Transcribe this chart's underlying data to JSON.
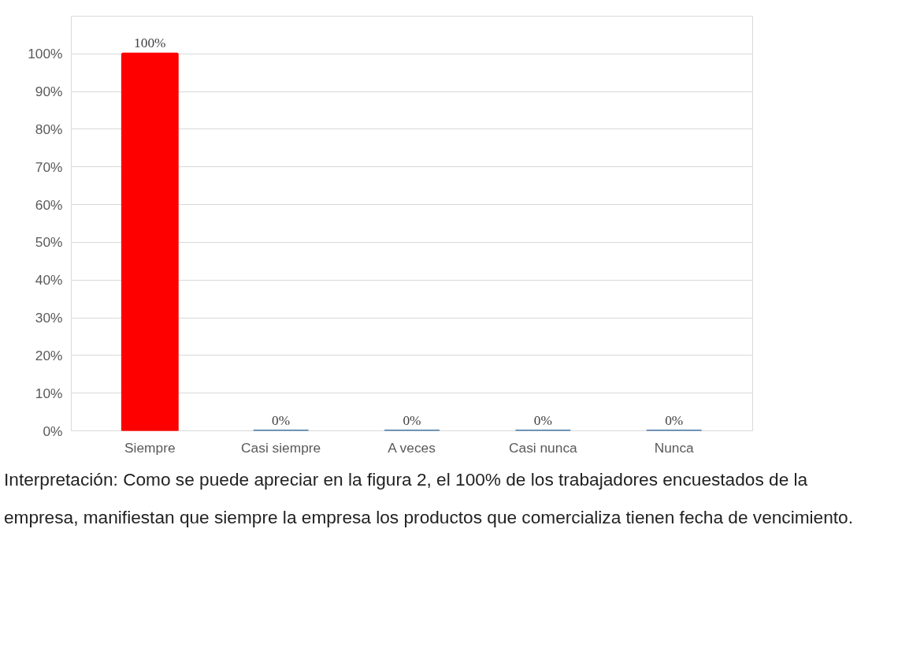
{
  "chart_data": {
    "type": "bar",
    "categories": [
      "Siempre",
      "Casi siempre",
      "A veces",
      "Casi nunca",
      "Nunca"
    ],
    "values": [
      100,
      0,
      0,
      0,
      0
    ],
    "colors": [
      "#ff0000",
      "#4a7aa8",
      "#4a7aa8",
      "#4a7aa8",
      "#4a7aa8"
    ],
    "value_labels": [
      "100%",
      "0%",
      "0%",
      "0%",
      "0%"
    ],
    "ylim": [
      0,
      110
    ],
    "yticks": [
      {
        "value": 0,
        "label": "0%"
      },
      {
        "value": 10,
        "label": "10%"
      },
      {
        "value": 20,
        "label": "20%"
      },
      {
        "value": 30,
        "label": "30%"
      },
      {
        "value": 40,
        "label": "40%"
      },
      {
        "value": 50,
        "label": "50%"
      },
      {
        "value": 60,
        "label": "60%"
      },
      {
        "value": 70,
        "label": "70%"
      },
      {
        "value": 80,
        "label": "80%"
      },
      {
        "value": 90,
        "label": "90%"
      },
      {
        "value": 100,
        "label": "100%"
      }
    ],
    "grid": "y",
    "annotations": [
      "Interpretación: Como se puede apreciar en la figura 2, el 100% de los trabajadores encuestados de la empresa, manifiestan que siempre la empresa los productos que comercializa tienen fecha de vencimiento."
    ]
  }
}
